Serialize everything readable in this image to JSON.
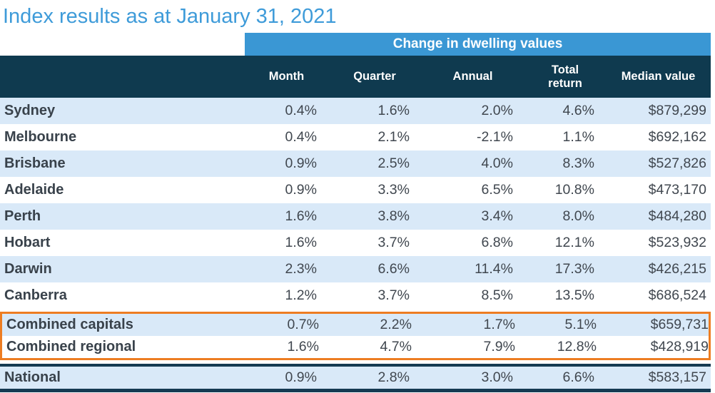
{
  "title": "Index results as at January 31, 2021",
  "chart_data": {
    "type": "table",
    "title": "Index results as at January 31, 2021",
    "group_header": "Change in dwelling values",
    "columns": [
      "",
      "Month",
      "Quarter",
      "Annual",
      "Total return",
      "Median value"
    ],
    "rows": [
      {
        "label": "Sydney",
        "values": [
          "0.4%",
          "1.6%",
          "2.0%",
          "4.6%",
          "$879,299"
        ],
        "section": "city"
      },
      {
        "label": "Melbourne",
        "values": [
          "0.4%",
          "2.1%",
          "-2.1%",
          "1.1%",
          "$692,162"
        ],
        "section": "city"
      },
      {
        "label": "Brisbane",
        "values": [
          "0.9%",
          "2.5%",
          "4.0%",
          "8.3%",
          "$527,826"
        ],
        "section": "city"
      },
      {
        "label": "Adelaide",
        "values": [
          "0.9%",
          "3.3%",
          "6.5%",
          "10.8%",
          "$473,170"
        ],
        "section": "city"
      },
      {
        "label": "Perth",
        "values": [
          "1.6%",
          "3.8%",
          "3.4%",
          "8.0%",
          "$484,280"
        ],
        "section": "city"
      },
      {
        "label": "Hobart",
        "values": [
          "1.6%",
          "3.7%",
          "6.8%",
          "12.1%",
          "$523,932"
        ],
        "section": "city"
      },
      {
        "label": "Darwin",
        "values": [
          "2.3%",
          "6.6%",
          "11.4%",
          "17.3%",
          "$426,215"
        ],
        "section": "city"
      },
      {
        "label": "Canberra",
        "values": [
          "1.2%",
          "3.7%",
          "8.5%",
          "13.5%",
          "$686,524"
        ],
        "section": "city"
      },
      {
        "label": "Combined capitals",
        "values": [
          "0.7%",
          "2.2%",
          "1.7%",
          "5.1%",
          "$659,731"
        ],
        "section": "combined"
      },
      {
        "label": "Combined regional",
        "values": [
          "1.6%",
          "4.7%",
          "7.9%",
          "12.8%",
          "$428,919"
        ],
        "section": "combined"
      },
      {
        "label": "National",
        "values": [
          "0.9%",
          "2.8%",
          "3.0%",
          "6.6%",
          "$583,157"
        ],
        "section": "national"
      }
    ],
    "layout": {
      "legend": "none",
      "grid": "off",
      "highlight_box_rows": [
        "Combined capitals",
        "Combined regional"
      ],
      "ruled_row": "National"
    }
  },
  "colors": {
    "title_blue": "#3E9BD9",
    "band_blue": "#3A97D4",
    "header_dark": "#0F3A4F",
    "row_alt_blue": "#D9E9F8",
    "accent_orange": "#ED7D22",
    "national_rule": "#153A52",
    "label_text": "#39424B",
    "value_text": "#40474F"
  }
}
